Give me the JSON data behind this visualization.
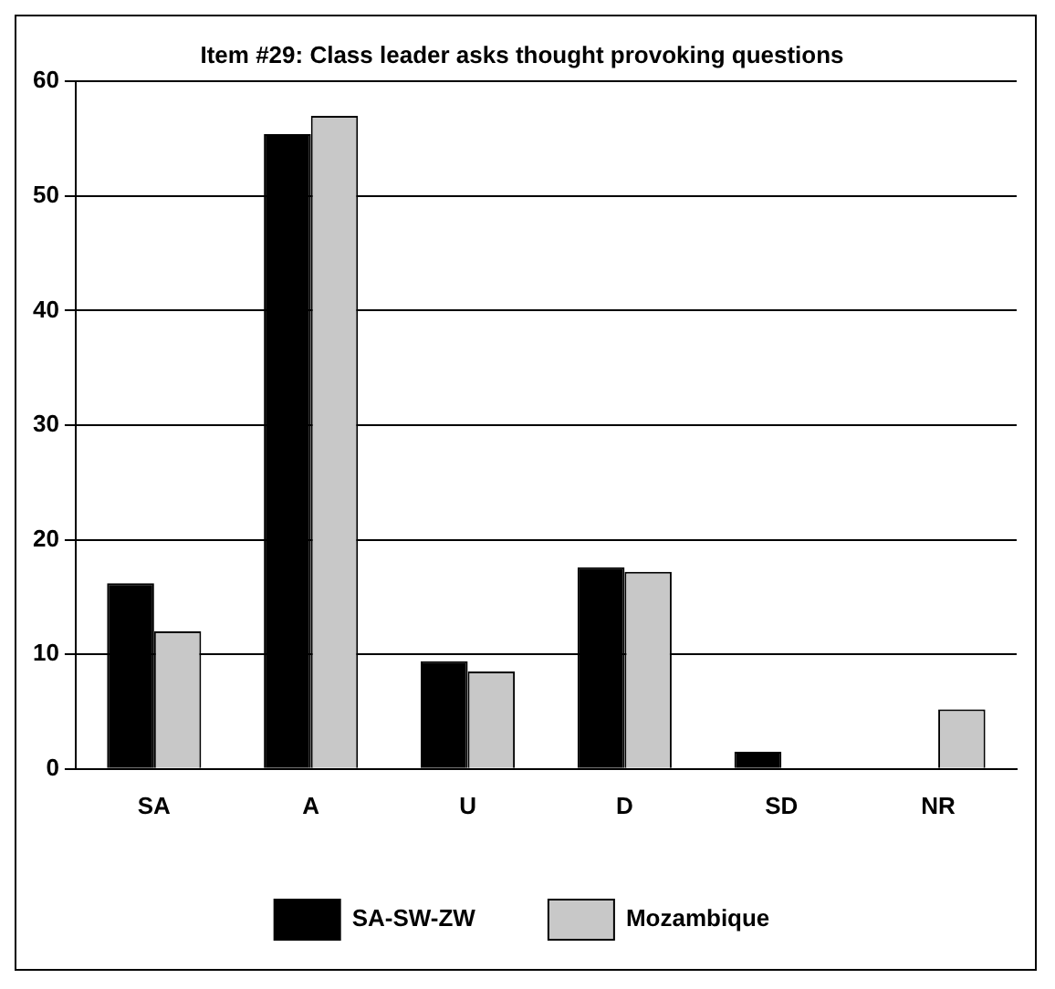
{
  "chart_data": {
    "type": "bar",
    "title": "Item #29: Class leader asks thought provoking questions",
    "categories": [
      "SA",
      "A",
      "U",
      "D",
      "SD",
      "NR"
    ],
    "series": [
      {
        "name": "SA-SW-ZW",
        "color": "#000000",
        "values": [
          16.2,
          55.4,
          9.4,
          17.6,
          1.5,
          0
        ]
      },
      {
        "name": "Mozambique",
        "color": "#c8c8c8",
        "values": [
          12.0,
          57.0,
          8.5,
          17.2,
          0,
          5.2
        ]
      }
    ],
    "ylim": [
      0,
      60
    ],
    "yticks": [
      0,
      10,
      20,
      30,
      40,
      50,
      60
    ],
    "grid": "y",
    "legend": "bottom"
  }
}
